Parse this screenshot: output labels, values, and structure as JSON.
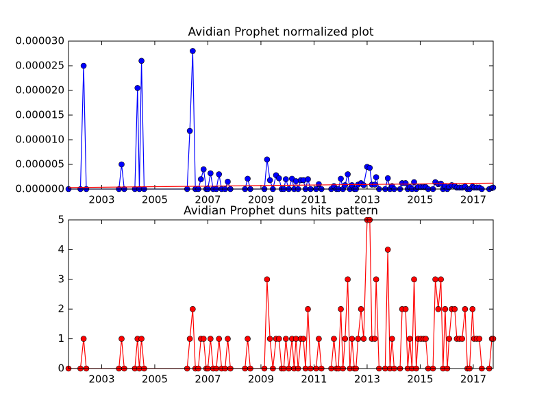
{
  "chart_data": [
    {
      "type": "line",
      "title": "Avidian Prophet normalized plot",
      "x": [
        2001.75,
        2002.2,
        2002.32,
        2002.42,
        2003.65,
        2003.75,
        2003.85,
        2004.25,
        2004.35,
        2004.42,
        2004.5,
        2004.6,
        2006.22,
        2006.32,
        2006.43,
        2006.53,
        2006.64,
        2006.74,
        2006.84,
        2006.94,
        2007.0,
        2007.1,
        2007.2,
        2007.32,
        2007.42,
        2007.52,
        2007.65,
        2007.75,
        2007.85,
        2008.4,
        2008.5,
        2008.6,
        2009.13,
        2009.23,
        2009.34,
        2009.45,
        2009.57,
        2009.68,
        2009.78,
        2009.86,
        2009.94,
        2010.05,
        2010.17,
        2010.25,
        2010.32,
        2010.4,
        2010.5,
        2010.6,
        2010.68,
        2010.77,
        2010.87,
        2011.08,
        2011.18,
        2011.28,
        2011.65,
        2011.75,
        2011.85,
        2011.92,
        2012.01,
        2012.09,
        2012.17,
        2012.27,
        2012.35,
        2012.43,
        2012.52,
        2012.58,
        2012.66,
        2012.77,
        2012.87,
        2013.0,
        2013.1,
        2013.18,
        2013.29,
        2013.34,
        2013.45,
        2013.68,
        2013.78,
        2013.86,
        2013.94,
        2014.02,
        2014.24,
        2014.32,
        2014.45,
        2014.53,
        2014.61,
        2014.69,
        2014.77,
        2014.85,
        2014.92,
        2015.03,
        2015.13,
        2015.21,
        2015.3,
        2015.48,
        2015.57,
        2015.68,
        2015.78,
        2015.86,
        2015.94,
        2016.02,
        2016.09,
        2016.19,
        2016.3,
        2016.38,
        2016.48,
        2016.58,
        2016.69,
        2016.78,
        2016.86,
        2016.97,
        2017.03,
        2017.13,
        2017.23,
        2017.32,
        2017.6,
        2017.7,
        2017.75
      ],
      "series": [
        {
          "color": "#0000ff",
          "values": [
            0,
            0,
            2.5e-05,
            0,
            0,
            5e-06,
            0,
            0,
            2.05e-05,
            0,
            2.6e-05,
            0,
            0,
            1.18e-05,
            2.8e-05,
            0,
            0,
            2e-06,
            4e-06,
            0,
            0,
            3.2e-06,
            0,
            0,
            3e-06,
            0,
            0,
            1.5e-06,
            0,
            0,
            2.1e-06,
            0,
            0,
            6e-06,
            1.8e-06,
            0,
            2.8e-06,
            2.2e-06,
            0,
            0,
            2e-06,
            0,
            2.1e-06,
            0,
            1.6e-06,
            0,
            1.8e-06,
            1.8e-06,
            0,
            2e-06,
            0,
            0,
            1e-06,
            0,
            0,
            6e-07,
            0,
            0,
            2.1e-06,
            0,
            8e-07,
            3e-06,
            0,
            8e-07,
            0,
            0,
            9e-07,
            1.2e-06,
            8e-07,
            4.5e-06,
            4.3e-06,
            9e-07,
            9e-07,
            2.4e-06,
            0,
            0,
            2.2e-06,
            0,
            6e-07,
            0,
            0,
            1.2e-06,
            1.2e-06,
            0,
            4e-07,
            0,
            1.4e-06,
            0,
            4e-07,
            4e-07,
            4e-07,
            4e-07,
            0,
            0,
            1.4e-06,
            1e-06,
            1.1e-06,
            0,
            6e-07,
            0,
            4e-07,
            8e-07,
            6e-07,
            3e-07,
            3e-07,
            3e-07,
            5e-07,
            0,
            0,
            5e-07,
            3e-07,
            3e-07,
            3e-07,
            0,
            0,
            2e-07,
            3e-07
          ]
        }
      ],
      "trend_line": {
        "color": "#ff0000",
        "x": [
          2001.75,
          2017.75
        ],
        "y": [
          3e-07,
          1.2e-06
        ]
      },
      "xlim": [
        2001.75,
        2017.75
      ],
      "xticks": [
        2003,
        2005,
        2007,
        2009,
        2011,
        2013,
        2015,
        2017
      ],
      "ylim": [
        0,
        3e-05
      ],
      "yticks": [
        {
          "value": 0,
          "label": "0.000000"
        },
        {
          "value": 5e-06,
          "label": "0.000005"
        },
        {
          "value": 1e-05,
          "label": "0.000010"
        },
        {
          "value": 1.5e-05,
          "label": "0.000015"
        },
        {
          "value": 2e-05,
          "label": "0.000020"
        },
        {
          "value": 2.5e-05,
          "label": "0.000025"
        },
        {
          "value": 3e-05,
          "label": "0.000030"
        }
      ]
    },
    {
      "type": "line",
      "title": "Avidian Prophet duns hits pattern",
      "x": [
        2001.75,
        2002.2,
        2002.32,
        2002.42,
        2003.65,
        2003.75,
        2003.85,
        2004.25,
        2004.35,
        2004.42,
        2004.5,
        2004.6,
        2006.22,
        2006.32,
        2006.43,
        2006.53,
        2006.64,
        2006.74,
        2006.84,
        2006.94,
        2007.0,
        2007.1,
        2007.2,
        2007.32,
        2007.42,
        2007.52,
        2007.65,
        2007.75,
        2007.85,
        2008.4,
        2008.5,
        2008.6,
        2009.13,
        2009.23,
        2009.34,
        2009.45,
        2009.57,
        2009.68,
        2009.78,
        2009.86,
        2009.94,
        2010.05,
        2010.17,
        2010.25,
        2010.32,
        2010.4,
        2010.5,
        2010.6,
        2010.68,
        2010.77,
        2010.87,
        2011.08,
        2011.18,
        2011.28,
        2011.65,
        2011.75,
        2011.85,
        2011.92,
        2012.01,
        2012.09,
        2012.17,
        2012.27,
        2012.35,
        2012.43,
        2012.52,
        2012.58,
        2012.66,
        2012.77,
        2012.87,
        2013.0,
        2013.1,
        2013.18,
        2013.29,
        2013.34,
        2013.45,
        2013.68,
        2013.78,
        2013.86,
        2013.94,
        2014.02,
        2014.24,
        2014.32,
        2014.45,
        2014.53,
        2014.61,
        2014.69,
        2014.77,
        2014.85,
        2014.92,
        2015.03,
        2015.13,
        2015.21,
        2015.3,
        2015.48,
        2015.57,
        2015.68,
        2015.78,
        2015.86,
        2015.94,
        2016.02,
        2016.09,
        2016.19,
        2016.3,
        2016.38,
        2016.48,
        2016.58,
        2016.69,
        2016.78,
        2016.86,
        2016.97,
        2017.03,
        2017.13,
        2017.23,
        2017.32,
        2017.6,
        2017.7,
        2017.75
      ],
      "series": [
        {
          "color": "#ff0000",
          "values": [
            0,
            0,
            1,
            0,
            0,
            1,
            0,
            0,
            1,
            0,
            1,
            0,
            0,
            1,
            2,
            0,
            0,
            1,
            1,
            0,
            0,
            1,
            0,
            0,
            1,
            0,
            0,
            1,
            0,
            0,
            1,
            0,
            0,
            3,
            1,
            0,
            1,
            1,
            0,
            0,
            1,
            0,
            1,
            0,
            1,
            0,
            1,
            1,
            0,
            2,
            0,
            0,
            1,
            0,
            0,
            1,
            0,
            0,
            2,
            0,
            1,
            3,
            0,
            1,
            0,
            0,
            1,
            2,
            1,
            5,
            5,
            1,
            1,
            3,
            0,
            0,
            4,
            0,
            1,
            0,
            0,
            2,
            2,
            0,
            1,
            0,
            3,
            0,
            1,
            1,
            1,
            1,
            0,
            0,
            3,
            2,
            3,
            0,
            2,
            0,
            1,
            2,
            2,
            1,
            1,
            1,
            2,
            0,
            0,
            2,
            1,
            1,
            1,
            0,
            0,
            1,
            1
          ]
        }
      ],
      "xlim": [
        2001.75,
        2017.75
      ],
      "xticks": [
        2003,
        2005,
        2007,
        2009,
        2011,
        2013,
        2015,
        2017
      ],
      "ylim": [
        0,
        5
      ],
      "yticks": [
        0,
        1,
        2,
        3,
        4,
        5
      ]
    }
  ]
}
